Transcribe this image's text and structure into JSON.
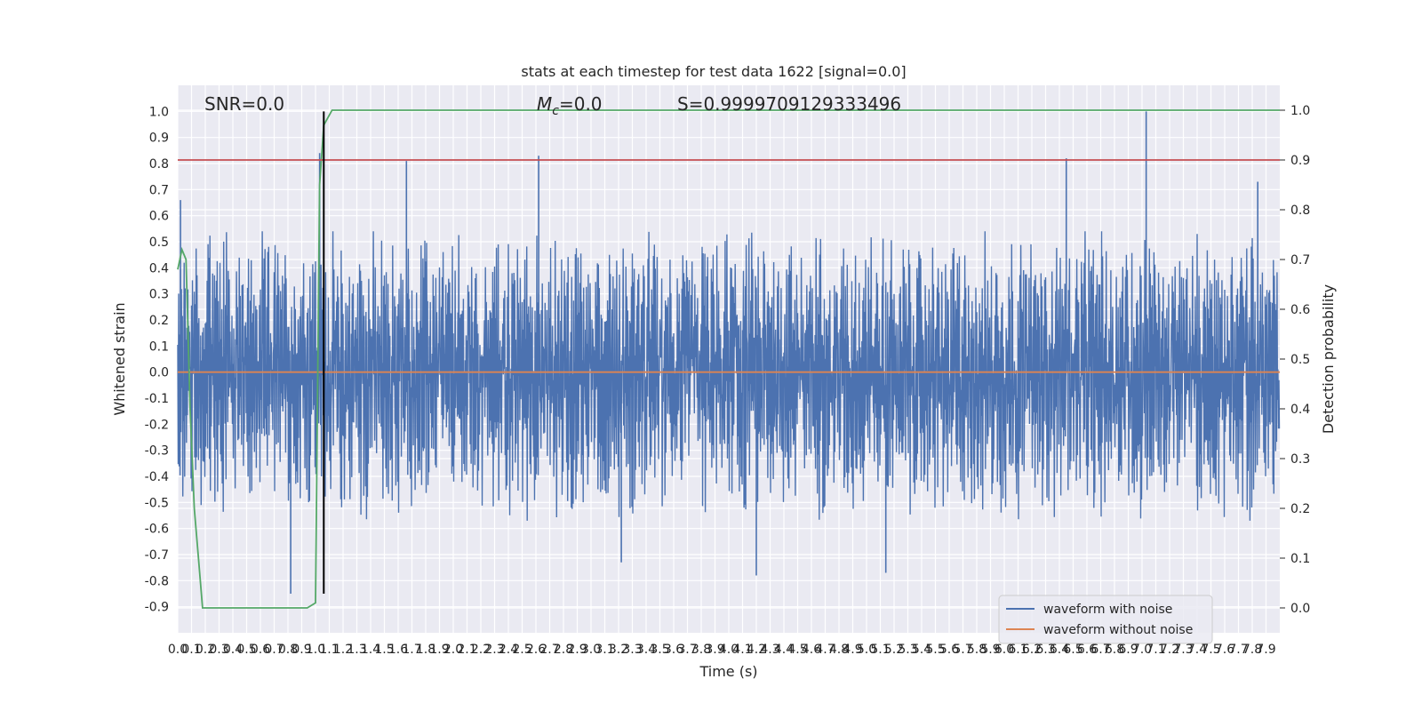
{
  "chart_data": {
    "type": "line",
    "title": "stats at each timestep for test data 1622 [signal=0.0]",
    "xlabel": "Time (s)",
    "ylabel": "Whitened strain",
    "y2label": "Detection probability",
    "annotations": {
      "snr": "SNR=0.0",
      "mc_symbol": "M",
      "mc_sub": "c",
      "mc_value": "=0.0",
      "s": "S=0.9999709129333496"
    },
    "xlim": [
      0.0,
      8.0
    ],
    "ylim": [
      -1.0,
      1.1
    ],
    "y2lim": [
      -0.05,
      1.05
    ],
    "x_ticks": [
      "0.0",
      "0.1",
      "0.2",
      "0.3",
      "0.4",
      "0.5",
      "0.6",
      "0.7",
      "0.8",
      "0.9",
      "1.0",
      "1.1",
      "1.2",
      "1.3",
      "1.4",
      "1.5",
      "1.6",
      "1.7",
      "1.8",
      "1.9",
      "2.0",
      "2.1",
      "2.2",
      "2.3",
      "2.4",
      "2.5",
      "2.6",
      "2.7",
      "2.8",
      "2.9",
      "3.0",
      "3.1",
      "3.2",
      "3.3",
      "3.4",
      "3.5",
      "3.6",
      "3.7",
      "3.8",
      "3.9",
      "4.0",
      "4.1",
      "4.2",
      "4.3",
      "4.4",
      "4.5",
      "4.6",
      "4.7",
      "4.8",
      "4.9",
      "5.0",
      "5.1",
      "5.2",
      "5.3",
      "5.4",
      "5.5",
      "5.6",
      "5.7",
      "5.8",
      "5.9",
      "6.0",
      "6.1",
      "6.2",
      "6.3",
      "6.4",
      "6.5",
      "6.6",
      "6.7",
      "6.8",
      "6.9",
      "7.0",
      "7.1",
      "7.2",
      "7.3",
      "7.4",
      "7.5",
      "7.6",
      "7.7",
      "7.8",
      "7.9"
    ],
    "y_ticks": [
      "-0.9",
      "-0.8",
      "-0.7",
      "-0.6",
      "-0.5",
      "-0.4",
      "-0.3",
      "-0.2",
      "-0.1",
      "0.0",
      "0.1",
      "0.2",
      "0.3",
      "0.4",
      "0.5",
      "0.6",
      "0.7",
      "0.8",
      "0.9",
      "1.0"
    ],
    "y2_ticks": [
      "0.0",
      "0.1",
      "0.2",
      "0.3",
      "0.4",
      "0.5",
      "0.6",
      "0.7",
      "0.8",
      "0.9",
      "1.0"
    ],
    "threshold_y2": 0.9,
    "event_time": 1.06,
    "grid": true,
    "legend_position": "lower-right",
    "series": [
      {
        "name": "waveform with noise",
        "axis": "left",
        "color": "#4c72b0",
        "description_values": {
          "typical_range": [
            -0.45,
            0.42
          ],
          "peaks": [
            {
              "x": 0.02,
              "y": 0.66
            },
            {
              "x": 0.82,
              "y": -0.85
            },
            {
              "x": 1.03,
              "y": 0.84
            },
            {
              "x": 1.66,
              "y": 0.81
            },
            {
              "x": 2.62,
              "y": 0.83
            },
            {
              "x": 3.22,
              "y": -0.73
            },
            {
              "x": 4.2,
              "y": -0.78
            },
            {
              "x": 5.14,
              "y": -0.77
            },
            {
              "x": 6.45,
              "y": 0.82
            },
            {
              "x": 7.03,
              "y": 1.0
            },
            {
              "x": 7.84,
              "y": 0.73
            }
          ]
        }
      },
      {
        "name": "waveform without noise",
        "axis": "left",
        "color": "#dd8452",
        "x": [
          0.0,
          8.0
        ],
        "y": [
          0.0,
          0.0
        ]
      },
      {
        "name": "",
        "axis": "right",
        "color": "#55a868",
        "x": [
          0.0,
          0.03,
          0.06,
          0.09,
          0.12,
          0.15,
          0.18,
          0.8,
          0.94,
          1.0,
          1.03,
          1.06,
          1.12,
          8.0
        ],
        "y": [
          0.68,
          0.72,
          0.7,
          0.4,
          0.2,
          0.1,
          0.0,
          0.0,
          0.0,
          0.01,
          0.85,
          0.97,
          1.0,
          1.0
        ]
      },
      {
        "name": "",
        "axis": "right",
        "color": "#c44e52",
        "x": [
          0.0,
          8.0
        ],
        "y": [
          0.9,
          0.9
        ]
      }
    ]
  }
}
